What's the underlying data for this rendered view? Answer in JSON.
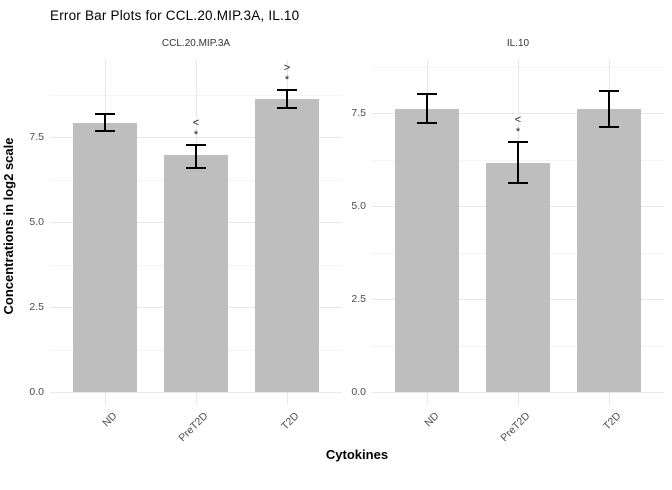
{
  "chart_data": {
    "type": "bar",
    "title": "Error Bar Plots for CCL.20.MIP.3A, IL.10",
    "ylabel": "Concentrations in log2 scale",
    "xlabel": "Cytokines",
    "categories": [
      "ND",
      "PreT2D",
      "T2D"
    ],
    "y_tick_labels": [
      "0.0",
      "2.5",
      "5.0",
      "7.5"
    ],
    "y_major_ticks": [
      0,
      2.5,
      5,
      7.5
    ],
    "y_minor_ticks": [
      1.25,
      3.75,
      6.25,
      8.75
    ],
    "grid": "on",
    "legend": "none",
    "panels": [
      {
        "facet": "CCL.20.MIP.3A",
        "ylim": [
          0,
          9.8
        ],
        "bars": [
          {
            "category": "ND",
            "mean": 7.9,
            "ymin": 7.67,
            "ymax": 8.19,
            "annotation": null
          },
          {
            "category": "PreT2D",
            "mean": 6.97,
            "ymin": 6.59,
            "ymax": 7.26,
            "annotation": {
              "symbol": "<",
              "star": "*"
            }
          },
          {
            "category": "T2D",
            "mean": 8.63,
            "ymin": 8.35,
            "ymax": 8.88,
            "annotation": {
              "symbol": ">",
              "star": "*"
            }
          }
        ]
      },
      {
        "facet": "IL.10",
        "ylim": [
          0,
          8.9
        ],
        "bars": [
          {
            "category": "ND",
            "mean": 7.6,
            "ymin": 7.22,
            "ymax": 8.0,
            "annotation": null
          },
          {
            "category": "PreT2D",
            "mean": 6.15,
            "ymin": 5.61,
            "ymax": 6.71,
            "annotation": {
              "symbol": "<",
              "star": "*"
            }
          },
          {
            "category": "T2D",
            "mean": 7.6,
            "ymin": 7.12,
            "ymax": 8.1,
            "annotation": null
          }
        ]
      }
    ],
    "colors": {
      "bar_fill": "#bebebe",
      "error_bar": "#000000",
      "grid_major": "#e8e8e8",
      "grid_minor": "#f4f4f4",
      "axis_text": "#4d4d4d",
      "title_text": "#000000"
    }
  }
}
